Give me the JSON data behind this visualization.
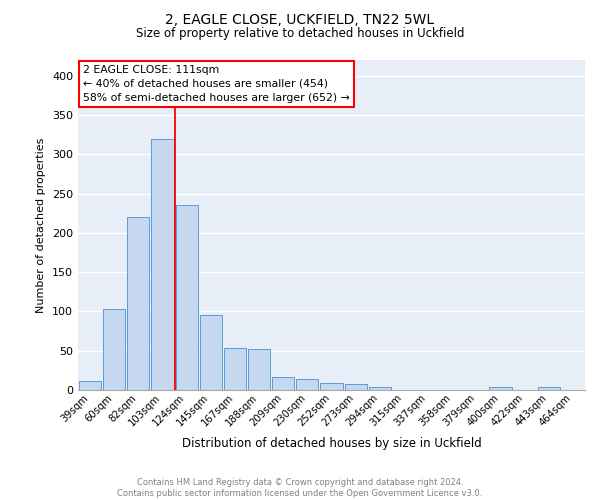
{
  "title1": "2, EAGLE CLOSE, UCKFIELD, TN22 5WL",
  "title2": "Size of property relative to detached houses in Uckfield",
  "xlabel": "Distribution of detached houses by size in Uckfield",
  "ylabel": "Number of detached properties",
  "bins": [
    "39sqm",
    "60sqm",
    "82sqm",
    "103sqm",
    "124sqm",
    "145sqm",
    "167sqm",
    "188sqm",
    "209sqm",
    "230sqm",
    "252sqm",
    "273sqm",
    "294sqm",
    "315sqm",
    "337sqm",
    "358sqm",
    "379sqm",
    "400sqm",
    "422sqm",
    "443sqm",
    "464sqm"
  ],
  "values": [
    12,
    103,
    220,
    320,
    235,
    96,
    54,
    52,
    16,
    14,
    9,
    8,
    4,
    0,
    0,
    0,
    0,
    4,
    0,
    4,
    0
  ],
  "bar_color": "#c5d8f0",
  "bar_edge_color": "#5b9bd5",
  "red_line_x": 3.5,
  "annotation_line1": "2 EAGLE CLOSE: 111sqm",
  "annotation_line2": "← 40% of detached houses are smaller (454)",
  "annotation_line3": "58% of semi-detached houses are larger (652) →",
  "footer_text": "Contains HM Land Registry data © Crown copyright and database right 2024.\nContains public sector information licensed under the Open Government Licence v3.0.",
  "ylim": [
    0,
    420
  ],
  "yticks": [
    0,
    50,
    100,
    150,
    200,
    250,
    300,
    350,
    400
  ],
  "bg_color": "#e8eef8",
  "grid_color": "white"
}
